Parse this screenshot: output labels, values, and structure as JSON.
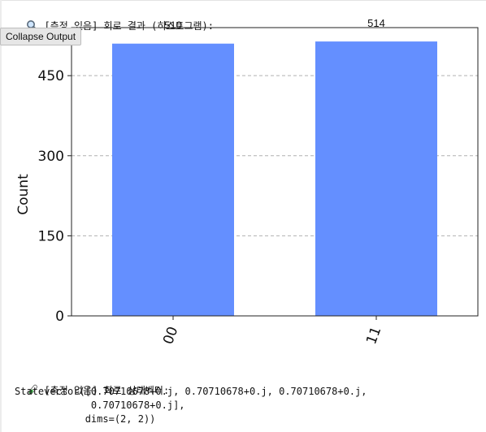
{
  "output_header": {
    "icon": "magnifier-icon",
    "text": "[측정 있음] 회로 결과 (히스토그램):"
  },
  "tooltip": {
    "label": "Collapse Output"
  },
  "chart_data": {
    "type": "bar",
    "categories": [
      "00",
      "11"
    ],
    "values": [
      510,
      514
    ],
    "data_labels": [
      "510",
      "514"
    ],
    "ylabel": "Count",
    "yticks": [
      0,
      150,
      300,
      450
    ],
    "ylim": [
      0,
      540
    ],
    "grid": "horizontal dashed",
    "bar_color": "#648fff",
    "xtick_rotation": -70
  },
  "statevector_header": {
    "icon": "test-tube-icon",
    "text": "[측정 없음] 회로 상태벡터:"
  },
  "statevector_output": {
    "line1": "Statevector([0.70710678+0.j, 0.70710678+0.j, 0.70710678+0.j,",
    "line2": "             0.70710678+0.j],",
    "line3": "            dims=(2, 2))"
  }
}
